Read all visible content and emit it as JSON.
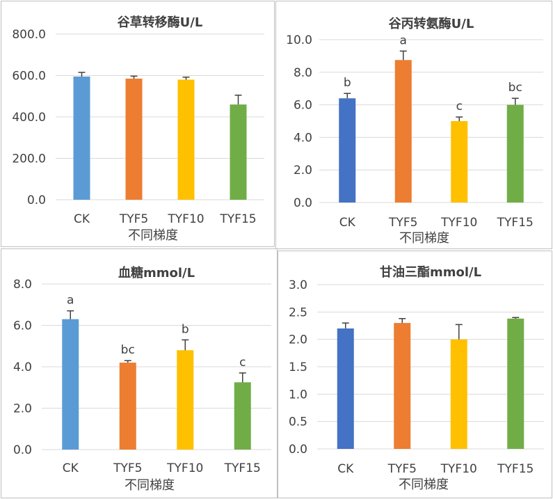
{
  "chart_data": [
    {
      "type": "bar",
      "title": "谷草转移酶U/L",
      "xlabel": "不同梯度",
      "ylabel": "",
      "categories": [
        "CK",
        "TYF5",
        "TYF10",
        "TYF15"
      ],
      "values": [
        595,
        585,
        580,
        460
      ],
      "errors": [
        20,
        12,
        12,
        45
      ],
      "significance": [
        "",
        "",
        "",
        ""
      ],
      "ylim": [
        0,
        800
      ],
      "yticks": [
        "0.0",
        "200.0",
        "400.0",
        "600.0",
        "800.0"
      ],
      "colors": [
        "#5b9bd5",
        "#ed7d31",
        "#ffc000",
        "#70ad47"
      ],
      "grid": true,
      "legend": "none"
    },
    {
      "type": "bar",
      "title": "谷丙转氨酶U/L",
      "xlabel": "不同梯度",
      "ylabel": "",
      "categories": [
        "CK",
        "TYF5",
        "TYF10",
        "TYF15"
      ],
      "values": [
        6.4,
        8.75,
        5.0,
        6.0
      ],
      "errors": [
        0.3,
        0.55,
        0.25,
        0.4
      ],
      "significance": [
        "b",
        "a",
        "c",
        "bc"
      ],
      "ylim": [
        0,
        10
      ],
      "yticks": [
        "0.0",
        "2.0",
        "4.0",
        "6.0",
        "8.0",
        "10.0"
      ],
      "colors": [
        "#4472c4",
        "#ed7d31",
        "#ffc000",
        "#70ad47"
      ],
      "grid": true,
      "legend": "none"
    },
    {
      "type": "bar",
      "title": "血糖mmol/L",
      "xlabel": "不同梯度",
      "ylabel": "",
      "categories": [
        "CK",
        "TYF5",
        "TYF10",
        "TYF15"
      ],
      "values": [
        6.3,
        4.2,
        4.8,
        3.25
      ],
      "errors": [
        0.4,
        0.1,
        0.5,
        0.45
      ],
      "significance": [
        "a",
        "bc",
        "b",
        "c"
      ],
      "ylim": [
        0,
        8
      ],
      "yticks": [
        "0.0",
        "2.0",
        "4.0",
        "6.0",
        "8.0"
      ],
      "colors": [
        "#5b9bd5",
        "#ed7d31",
        "#ffc000",
        "#70ad47"
      ],
      "grid": true,
      "legend": "none"
    },
    {
      "type": "bar",
      "title": "甘油三酯mmol/L",
      "xlabel": "不同梯度",
      "ylabel": "",
      "categories": [
        "CK",
        "TYF5",
        "TYF10",
        "TYF15"
      ],
      "values": [
        2.2,
        2.3,
        2.0,
        2.38
      ],
      "errors": [
        0.1,
        0.08,
        0.27,
        0.02
      ],
      "significance": [
        "",
        "",
        "",
        ""
      ],
      "ylim": [
        0,
        3
      ],
      "yticks": [
        "0.0",
        "0.5",
        "1.0",
        "1.5",
        "2.0",
        "2.5",
        "3.0"
      ],
      "colors": [
        "#4472c4",
        "#ed7d31",
        "#ffc000",
        "#70ad47"
      ],
      "grid": true,
      "legend": "none"
    }
  ]
}
